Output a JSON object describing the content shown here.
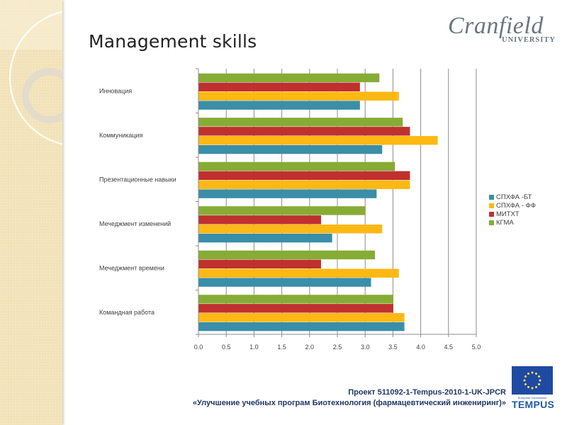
{
  "slide": {
    "title": "Management skills",
    "logo": {
      "name": "Cranfield",
      "sub": "UNIVERSITY"
    },
    "footer": {
      "line1": "Проект  511092-1-Tempus-2010-1-UK-JPCR",
      "line2": "«Улучшение учебных програм Биотехнология (фармацевтический инжениринг)»"
    },
    "tempus": {
      "sub": "European Commission",
      "word": "TEMPUS"
    }
  },
  "chart_data": {
    "type": "bar",
    "orientation": "horizontal",
    "title": "",
    "xlabel": "",
    "ylabel": "",
    "xlim": [
      0,
      5
    ],
    "x_ticks": [
      "0.0",
      "0.5",
      "1.0",
      "1.5",
      "2.0",
      "2.5",
      "3.0",
      "3.5",
      "4.0",
      "4.5",
      "5.0"
    ],
    "grid": true,
    "legend_position": "right",
    "categories": [
      "Инновация",
      "Коммуникация",
      "Презентационные навыки",
      "Менеджмент изменений",
      "Менеджмент времени",
      "Командная работа"
    ],
    "category_labels_display": [
      "Инновация",
      "Коммуникация",
      "Презентационные навыки",
      "Мечеджмент изменений",
      "Мечеджмент времени",
      "Командная работа"
    ],
    "series": [
      {
        "name": "СПХФА -БТ",
        "color": "#3a8ea8",
        "values": [
          2.9,
          3.3,
          3.2,
          2.4,
          3.1,
          3.7
        ]
      },
      {
        "name": "СПХФА - ФФ",
        "color": "#fdb813",
        "values": [
          3.6,
          4.3,
          3.8,
          3.3,
          3.6,
          3.7
        ]
      },
      {
        "name": "МИТХТ",
        "color": "#c0302e",
        "values": [
          2.9,
          3.8,
          3.8,
          2.2,
          2.2,
          3.5
        ]
      },
      {
        "name": "КГМА",
        "color": "#86ac35",
        "values": [
          3.25,
          3.67,
          3.53,
          3.0,
          3.17,
          3.5
        ]
      }
    ]
  }
}
